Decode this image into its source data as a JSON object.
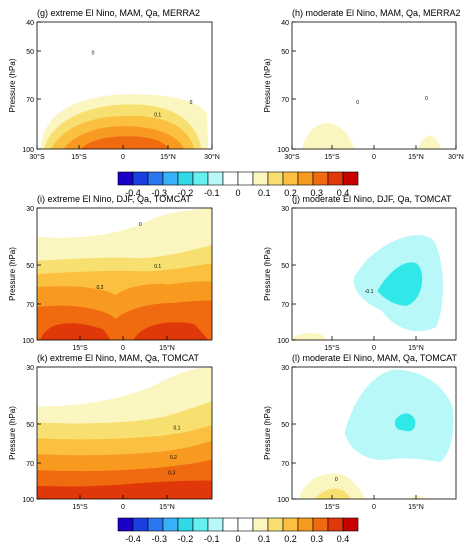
{
  "chart_data": [
    {
      "type": "heatmap",
      "title": "(g) extreme El Nino, MAM, Qa, MERRA2",
      "ylabel": "Pressure (hPa)",
      "xlabel": "",
      "x_ticks": [
        "30°S",
        "15°S",
        "0",
        "15°N",
        "30°N"
      ],
      "y_ticks": [
        "40",
        "50",
        "70",
        "100"
      ],
      "contour_labels": [
        "0",
        "0.1",
        "0"
      ],
      "field_by_pressure_hPa": [
        {
          "p": 40,
          "max_value": 0.0
        },
        {
          "p": 60,
          "max_value": 0.05
        },
        {
          "p": 70,
          "max_value": 0.1
        },
        {
          "p": 85,
          "max_value": 0.2
        },
        {
          "p": 100,
          "max_value": 0.3
        }
      ]
    },
    {
      "type": "heatmap",
      "title": "(h) moderate El Nino, MAM, Qa, MERRA2",
      "ylabel": "Pressure (hPa)",
      "xlabel": "",
      "x_ticks": [
        "30°S",
        "15°S",
        "0",
        "15°N",
        "30°N"
      ],
      "y_ticks": [
        "40",
        "50",
        "70",
        "100"
      ],
      "contour_labels": [
        "0",
        "0"
      ],
      "field_by_pressure_hPa": [
        {
          "p": 70,
          "max_value": 0.0
        },
        {
          "p": 100,
          "max_value": 0.1
        }
      ]
    },
    {
      "type": "heatmap",
      "title": "(i) extreme El Nino, DJF, Qa, TOMCAT",
      "ylabel": "Pressure (hPa)",
      "xlabel": "",
      "x_ticks": [
        "15°S",
        "0",
        "15°N"
      ],
      "y_ticks": [
        "30",
        "50",
        "70",
        "100"
      ],
      "contour_labels": [
        "0",
        "0.1",
        "0.2"
      ],
      "field_by_pressure_hPa": [
        {
          "p": 30,
          "max_value": 0.05
        },
        {
          "p": 50,
          "max_value": 0.1
        },
        {
          "p": 70,
          "max_value": 0.2
        },
        {
          "p": 100,
          "max_value": 0.4
        }
      ]
    },
    {
      "type": "heatmap",
      "title": "(j) moderate El Nino, DJF, Qa, TOMCAT",
      "ylabel": "Pressure (hPa)",
      "xlabel": "",
      "x_ticks": [
        "15°S",
        "0",
        "15°N"
      ],
      "y_ticks": [
        "30",
        "50",
        "70",
        "100"
      ],
      "contour_labels": [
        "-0.1"
      ],
      "field_by_pressure_hPa": [
        {
          "p": 50,
          "min_value": -0.1
        },
        {
          "p": 65,
          "min_value": -0.2
        },
        {
          "p": 100,
          "min_value": -0.1
        }
      ]
    },
    {
      "type": "heatmap",
      "title": "(k) extreme El Nino, MAM, Qa, TOMCAT",
      "ylabel": "Pressure (hPa)",
      "xlabel": "",
      "x_ticks": [
        "15°S",
        "0",
        "15°N"
      ],
      "y_ticks": [
        "30",
        "50",
        "70",
        "100"
      ],
      "contour_labels": [
        "0.1",
        "0.2",
        "0.3"
      ],
      "field_by_pressure_hPa": [
        {
          "p": 40,
          "max_value": 0.05
        },
        {
          "p": 50,
          "max_value": 0.1
        },
        {
          "p": 70,
          "max_value": 0.2
        },
        {
          "p": 85,
          "max_value": 0.3
        },
        {
          "p": 100,
          "max_value": 0.4
        }
      ]
    },
    {
      "type": "heatmap",
      "title": "(l) moderate El Nino, MAM, Qa, TOMCAT",
      "ylabel": "Pressure (hPa)",
      "xlabel": "",
      "x_ticks": [
        "15°S",
        "0",
        "15°N"
      ],
      "y_ticks": [
        "30",
        "50",
        "70",
        "100"
      ],
      "contour_labels": [
        "0"
      ],
      "field_by_pressure_hPa": [
        {
          "p": 40,
          "min_value": -0.1
        },
        {
          "p": 50,
          "min_value": -0.2
        },
        {
          "p": 100,
          "max_value": 0.1
        }
      ]
    }
  ],
  "colorbar": {
    "tick_labels": [
      "-0.4",
      "-0.3",
      "-0.2",
      "-0.1",
      "0",
      "0.1",
      "0.2",
      "0.3",
      "0.4"
    ],
    "colors": [
      "#1a00c8",
      "#1a40e0",
      "#2a78f0",
      "#3ab0f8",
      "#30d8e8",
      "#66f0f0",
      "#b8f8f8",
      "#ffffff",
      "#ffffff",
      "#fbf6c0",
      "#f7e070",
      "#fbc040",
      "#f99a20",
      "#f06a10",
      "#e03808",
      "#c80000"
    ]
  },
  "field_colors": {
    "pale_yellow": "#fbf6c0",
    "yellow": "#f7e070",
    "light_orange": "#fbc040",
    "orange": "#f99a20",
    "dark_orange": "#f06a10",
    "red_orange": "#e03808",
    "red": "#c80000",
    "pale_cyan": "#b8f8f8",
    "cyan": "#30e8e8"
  }
}
